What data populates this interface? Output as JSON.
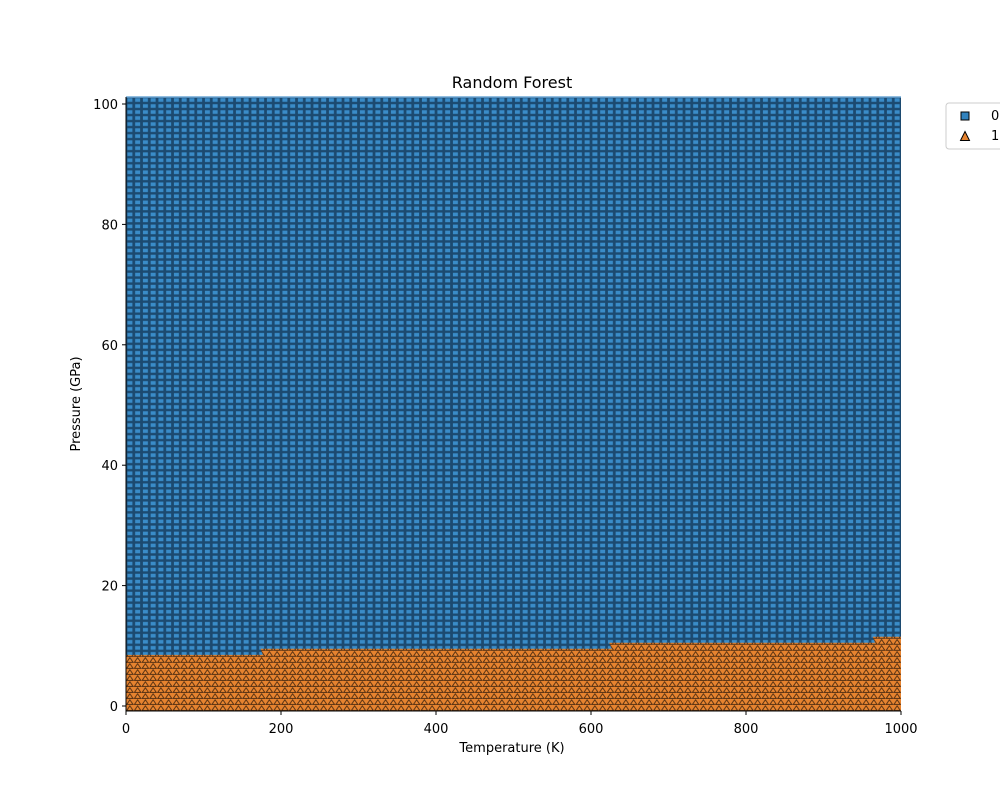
{
  "chart_data": {
    "type": "scatter",
    "title": "Random Forest",
    "xlabel": "Temperature (K)",
    "ylabel": "Pressure (GPa)",
    "xlim": [
      0,
      1000
    ],
    "ylim": [
      -1,
      101
    ],
    "x_ticks": [
      0,
      200,
      400,
      600,
      800,
      1000
    ],
    "y_ticks": [
      0,
      20,
      40,
      60,
      80,
      100
    ],
    "grid": false,
    "legend_placement": "outside upper right",
    "grid_spacing": {
      "x": 10,
      "y": 1
    },
    "series": [
      {
        "name": "0",
        "marker": "square",
        "color": "#3182bd",
        "region": "pressure above decision boundary"
      },
      {
        "name": "1",
        "marker": "triangle",
        "color": "#e6832f",
        "region": "pressure at or below decision boundary"
      }
    ],
    "decision_boundary": [
      {
        "x_from": 0,
        "x_to": 170,
        "pressure": 8
      },
      {
        "x_from": 180,
        "x_to": 620,
        "pressure": 9
      },
      {
        "x_from": 630,
        "x_to": 960,
        "pressure": 10
      },
      {
        "x_from": 970,
        "x_to": 1000,
        "pressure": 11
      }
    ]
  }
}
